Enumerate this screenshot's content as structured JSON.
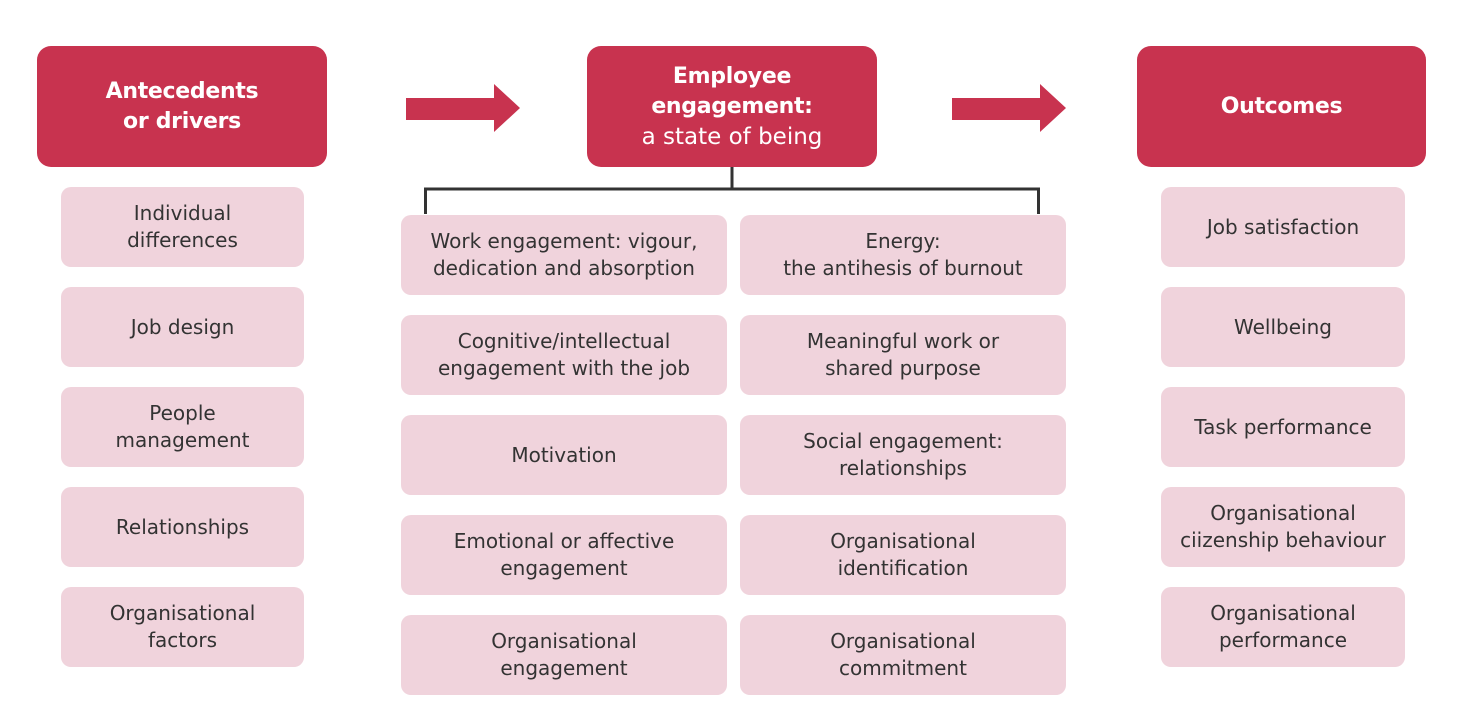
{
  "diagram": {
    "antecedents": {
      "header": "Antecedents\nor drivers",
      "items": [
        "Individual\ndifferences",
        "Job design",
        "People\nmanagement",
        "Relationships",
        "Organisational\nfactors"
      ]
    },
    "engagement": {
      "header_bold": "Employee\nengagement:",
      "header_sub": "a state of being",
      "left_items": [
        "Work engagement: vigour,\ndedication and absorption",
        "Cognitive/intellectual\nengagement with the job",
        "Motivation",
        "Emotional or affective\nengagement",
        "Organisational\nengagement"
      ],
      "right_items": [
        "Energy:\nthe antihesis of burnout",
        "Meaningful work or\nshared purpose",
        "Social engagement:\nrelationships",
        "Organisational\nidentification",
        "Organisational\ncommitment"
      ]
    },
    "outcomes": {
      "header": "Outcomes",
      "items": [
        "Job satisfaction",
        "Wellbeing",
        "Task performance",
        "Organisational\nciizenship behaviour",
        "Organisational\nperformance"
      ]
    },
    "colors": {
      "header_fill": "#c8334f",
      "box_fill": "#f0d3dc",
      "arrow_fill": "#c8334f",
      "connector": "#333333",
      "text": "#333333"
    }
  }
}
